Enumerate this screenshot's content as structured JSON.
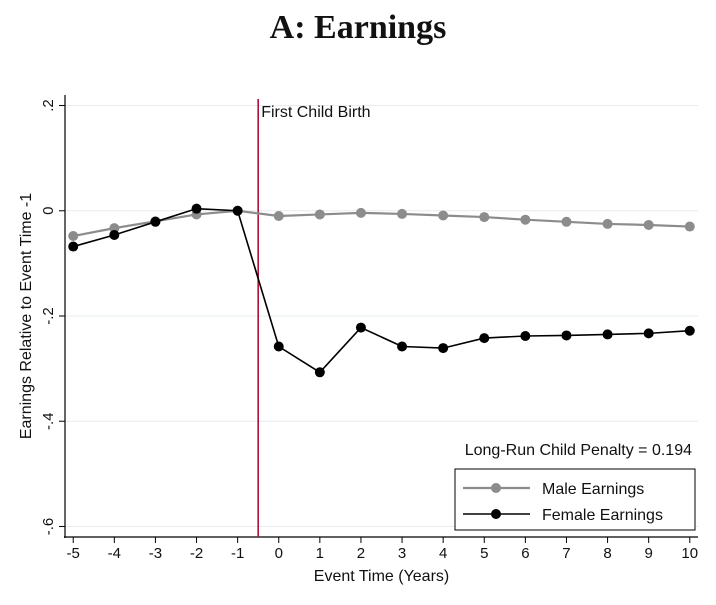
{
  "chart_data": {
    "type": "line",
    "title": "A: Earnings",
    "xlabel": "Event Time (Years)",
    "ylabel": "Earnings Relative to Event Time -1",
    "x": [
      -5,
      -4,
      -3,
      -2,
      -1,
      0,
      1,
      2,
      3,
      4,
      5,
      6,
      7,
      8,
      9,
      10
    ],
    "xticks": [
      "-5",
      "-4",
      "-3",
      "-2",
      "-1",
      "0",
      "1",
      "2",
      "3",
      "4",
      "5",
      "6",
      "7",
      "8",
      "9",
      "10"
    ],
    "yticks": [
      {
        "value": 0.2,
        "label": ".2"
      },
      {
        "value": 0,
        "label": "0"
      },
      {
        "value": -0.2,
        "label": "-.2"
      },
      {
        "value": -0.4,
        "label": "-.4"
      },
      {
        "value": -0.6,
        "label": "-.6"
      }
    ],
    "xlim": [
      -5.2,
      10.2
    ],
    "ylim": [
      -0.62,
      0.22
    ],
    "grid": true,
    "series": [
      {
        "name": "Male Earnings",
        "color": "#8c8c8c",
        "values": [
          -0.048,
          -0.033,
          -0.02,
          -0.007,
          0.0,
          -0.01,
          -0.007,
          -0.004,
          -0.006,
          -0.009,
          -0.012,
          -0.017,
          -0.021,
          -0.025,
          -0.027,
          -0.03
        ]
      },
      {
        "name": "Female Earnings",
        "color": "#000000",
        "values": [
          -0.068,
          -0.046,
          -0.021,
          0.004,
          0.0,
          -0.258,
          -0.307,
          -0.222,
          -0.258,
          -0.261,
          -0.242,
          -0.238,
          -0.237,
          -0.235,
          -0.233,
          -0.228
        ]
      }
    ],
    "event_line": {
      "x": -0.5,
      "label": "First Child Birth",
      "color": "#b0103a"
    },
    "annotation": "Long-Run Child Penalty = 0.194",
    "legend_position": "bottom-right"
  }
}
